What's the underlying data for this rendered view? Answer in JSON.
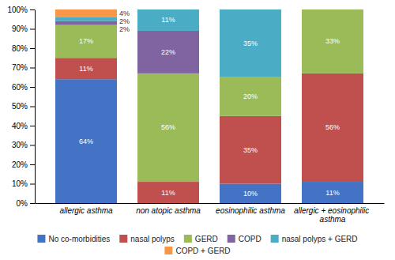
{
  "chart_data": {
    "type": "bar",
    "stacked": true,
    "data_labels": true,
    "grid": false,
    "legend": "bottom",
    "categories": [
      "allergic asthma",
      "non atopic asthma",
      "eosinophilic asthma",
      "allergic + eosinophilic asthma"
    ],
    "series": [
      {
        "name": "No co-morbidities",
        "color": "#4472C4",
        "values": [
          64,
          0,
          10,
          11
        ],
        "value_labels": [
          "64%",
          null,
          "10%",
          "11%"
        ]
      },
      {
        "name": "nasal polyps",
        "color": "#C0504D",
        "values": [
          11,
          11,
          35,
          56
        ],
        "value_labels": [
          "11%",
          "11%",
          "35%",
          "56%"
        ]
      },
      {
        "name": "GERD",
        "color": "#9BBB59",
        "values": [
          17,
          56,
          20,
          33
        ],
        "value_labels": [
          "17%",
          "56%",
          "20%",
          "33%"
        ]
      },
      {
        "name": "COPD",
        "color": "#8064A2",
        "values": [
          2,
          22,
          0,
          0
        ],
        "value_labels": [
          "2%",
          "22%",
          null,
          null
        ]
      },
      {
        "name": "nasal polyps + GERD",
        "color": "#4BACC6",
        "values": [
          2,
          11,
          35,
          0
        ],
        "value_labels": [
          "2%",
          "11%",
          "35%",
          null
        ]
      },
      {
        "name": "COPD + GERD",
        "color": "#F79646",
        "values": [
          4,
          0,
          0,
          0
        ],
        "value_labels": [
          "4%",
          null,
          null,
          null
        ]
      }
    ],
    "ylim": [
      0,
      100
    ],
    "yticks": [
      {
        "value": 0,
        "label": "0%"
      },
      {
        "value": 10,
        "label": "10%"
      },
      {
        "value": 20,
        "label": "20%"
      },
      {
        "value": 30,
        "label": "30%"
      },
      {
        "value": 40,
        "label": "40%"
      },
      {
        "value": 50,
        "label": "50%"
      },
      {
        "value": 60,
        "label": "60%"
      },
      {
        "value": 70,
        "label": "70%"
      },
      {
        "value": 80,
        "label": "80%"
      },
      {
        "value": 90,
        "label": "90%"
      },
      {
        "value": 100,
        "label": "100%"
      }
    ]
  }
}
